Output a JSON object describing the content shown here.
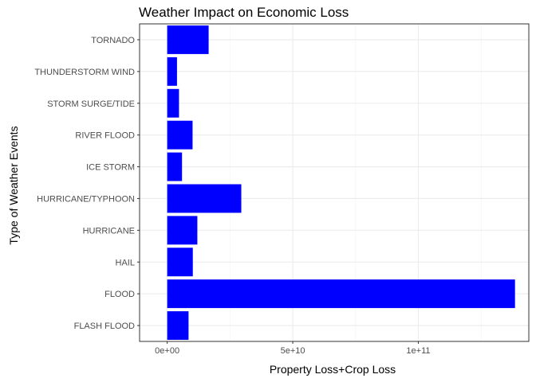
{
  "chart_data": {
    "type": "bar",
    "orientation": "horizontal",
    "title": "Weather Impact on Economic Loss",
    "xlabel": "Property Loss+Crop Loss",
    "ylabel": "Type of Weather Events",
    "categories": [
      "FLASH FLOOD",
      "FLOOD",
      "HAIL",
      "HURRICANE",
      "HURRICANE/TYPHOON",
      "ICE STORM",
      "RIVER FLOOD",
      "STORM SURGE/TIDE",
      "THUNDERSTORM WIND",
      "TORNADO"
    ],
    "values": [
      8500000000.0,
      138500000000.0,
      10200000000.0,
      12000000000.0,
      29500000000.0,
      5900000000.0,
      10100000000.0,
      4700000000.0,
      3900000000.0,
      16500000000.0
    ],
    "xlim": [
      -11000000000.0,
      144000000000.0
    ],
    "x_ticks": [
      0,
      50000000000.0,
      100000000000.0
    ],
    "x_tick_labels": [
      "0e+00",
      "5e+10",
      "1e+11"
    ],
    "bar_color": "#0000ff",
    "grid": true,
    "theme": "bw"
  }
}
